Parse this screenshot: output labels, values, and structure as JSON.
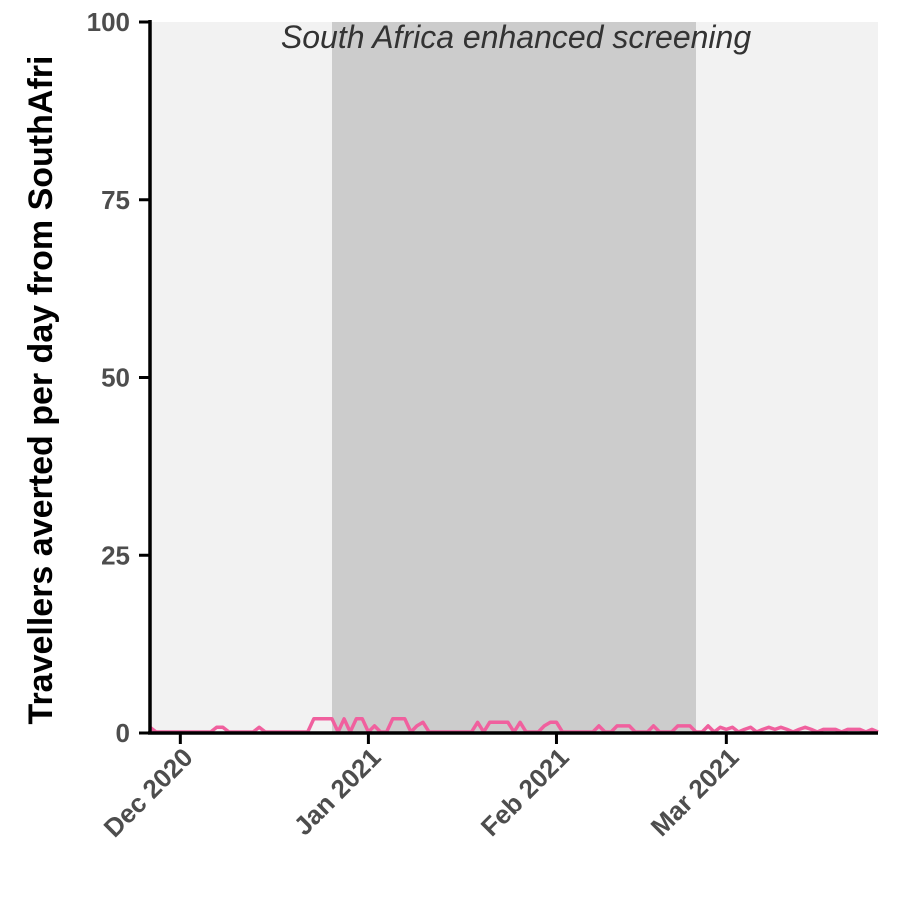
{
  "chart_data": {
    "type": "line",
    "title": "",
    "xlabel": "",
    "ylabel": "Travellers averted per day from SouthAfri",
    "ylim": [
      0,
      100
    ],
    "xlim": [
      "2020-11-26",
      "2021-03-26"
    ],
    "yticks": [
      0,
      25,
      50,
      75,
      100
    ],
    "xticks": [
      {
        "date": "2020-12-01",
        "label": "Dec 2020"
      },
      {
        "date": "2021-01-01",
        "label": "Jan 2021"
      },
      {
        "date": "2021-02-01",
        "label": "Feb 2021"
      },
      {
        "date": "2021-03-01",
        "label": "Mar 2021"
      }
    ],
    "shaded_periods": [
      {
        "start": "2020-11-26",
        "end": "2020-12-26",
        "color": "#f2f2f2"
      },
      {
        "start": "2020-12-26",
        "end": "2021-02-24",
        "color": "#cccccc",
        "label": "South Africa enhanced screening"
      },
      {
        "start": "2021-02-24",
        "end": "2021-03-26",
        "color": "#f2f2f2"
      }
    ],
    "grid": false,
    "legend": "none",
    "series": [
      {
        "color": "#f0609e",
        "x": [
          "2020-11-26",
          "2020-11-27",
          "2020-11-28",
          "2020-11-29",
          "2020-11-30",
          "2020-12-01",
          "2020-12-02",
          "2020-12-03",
          "2020-12-04",
          "2020-12-05",
          "2020-12-06",
          "2020-12-07",
          "2020-12-08",
          "2020-12-09",
          "2020-12-10",
          "2020-12-11",
          "2020-12-12",
          "2020-12-13",
          "2020-12-14",
          "2020-12-15",
          "2020-12-16",
          "2020-12-17",
          "2020-12-18",
          "2020-12-19",
          "2020-12-20",
          "2020-12-21",
          "2020-12-22",
          "2020-12-23",
          "2020-12-24",
          "2020-12-25",
          "2020-12-26",
          "2020-12-27",
          "2020-12-28",
          "2020-12-29",
          "2020-12-30",
          "2020-12-31",
          "2021-01-01",
          "2021-01-02",
          "2021-01-03",
          "2021-01-04",
          "2021-01-05",
          "2021-01-06",
          "2021-01-07",
          "2021-01-08",
          "2021-01-09",
          "2021-01-10",
          "2021-01-11",
          "2021-01-12",
          "2021-01-13",
          "2021-01-14",
          "2021-01-15",
          "2021-01-16",
          "2021-01-17",
          "2021-01-18",
          "2021-01-19",
          "2021-01-20",
          "2021-01-21",
          "2021-01-22",
          "2021-01-23",
          "2021-01-24",
          "2021-01-25",
          "2021-01-26",
          "2021-01-27",
          "2021-01-28",
          "2021-01-29",
          "2021-01-30",
          "2021-01-31",
          "2021-02-01",
          "2021-02-02",
          "2021-02-03",
          "2021-02-04",
          "2021-02-05",
          "2021-02-06",
          "2021-02-07",
          "2021-02-08",
          "2021-02-09",
          "2021-02-10",
          "2021-02-11",
          "2021-02-12",
          "2021-02-13",
          "2021-02-14",
          "2021-02-15",
          "2021-02-16",
          "2021-02-17",
          "2021-02-18",
          "2021-02-19",
          "2021-02-20",
          "2021-02-21",
          "2021-02-22",
          "2021-02-23",
          "2021-02-24",
          "2021-02-25",
          "2021-02-26",
          "2021-02-27",
          "2021-02-28",
          "2021-03-01",
          "2021-03-02",
          "2021-03-03",
          "2021-03-04",
          "2021-03-05",
          "2021-03-06",
          "2021-03-07",
          "2021-03-08",
          "2021-03-09",
          "2021-03-10",
          "2021-03-11",
          "2021-03-12",
          "2021-03-13",
          "2021-03-14",
          "2021-03-15",
          "2021-03-16",
          "2021-03-17",
          "2021-03-18",
          "2021-03-19",
          "2021-03-20",
          "2021-03-21",
          "2021-03-22",
          "2021-03-23",
          "2021-03-24",
          "2021-03-25",
          "2021-03-26"
        ],
        "y": [
          0.8,
          0,
          0,
          0,
          0,
          0,
          0,
          0,
          0,
          0,
          0,
          0.8,
          0.8,
          0,
          0,
          0,
          0,
          0,
          0.8,
          0,
          0,
          0,
          0,
          0,
          0,
          0,
          0,
          2,
          2,
          2,
          2,
          0,
          2,
          0,
          2,
          2,
          0,
          1,
          0,
          0,
          2,
          2,
          2,
          0,
          1,
          1.5,
          0,
          0,
          0,
          0,
          0,
          0,
          0,
          0,
          1.5,
          0,
          1.5,
          1.5,
          1.5,
          1.5,
          0,
          1.5,
          0,
          0,
          0,
          1,
          1.5,
          1.5,
          0,
          0,
          0,
          0,
          0,
          0,
          1,
          0,
          0,
          1,
          1,
          1,
          0,
          0,
          0,
          1,
          0,
          0,
          0,
          1,
          1,
          1,
          0,
          0,
          1,
          0,
          0.8,
          0.5,
          0.8,
          0,
          0.5,
          0.8,
          0,
          0.5,
          0.8,
          0.5,
          0.8,
          0.5,
          0,
          0.5,
          0.8,
          0.5,
          0,
          0.5,
          0.5,
          0.5,
          0,
          0.5,
          0.5,
          0.5,
          0,
          0.5,
          0
        ]
      }
    ]
  }
}
